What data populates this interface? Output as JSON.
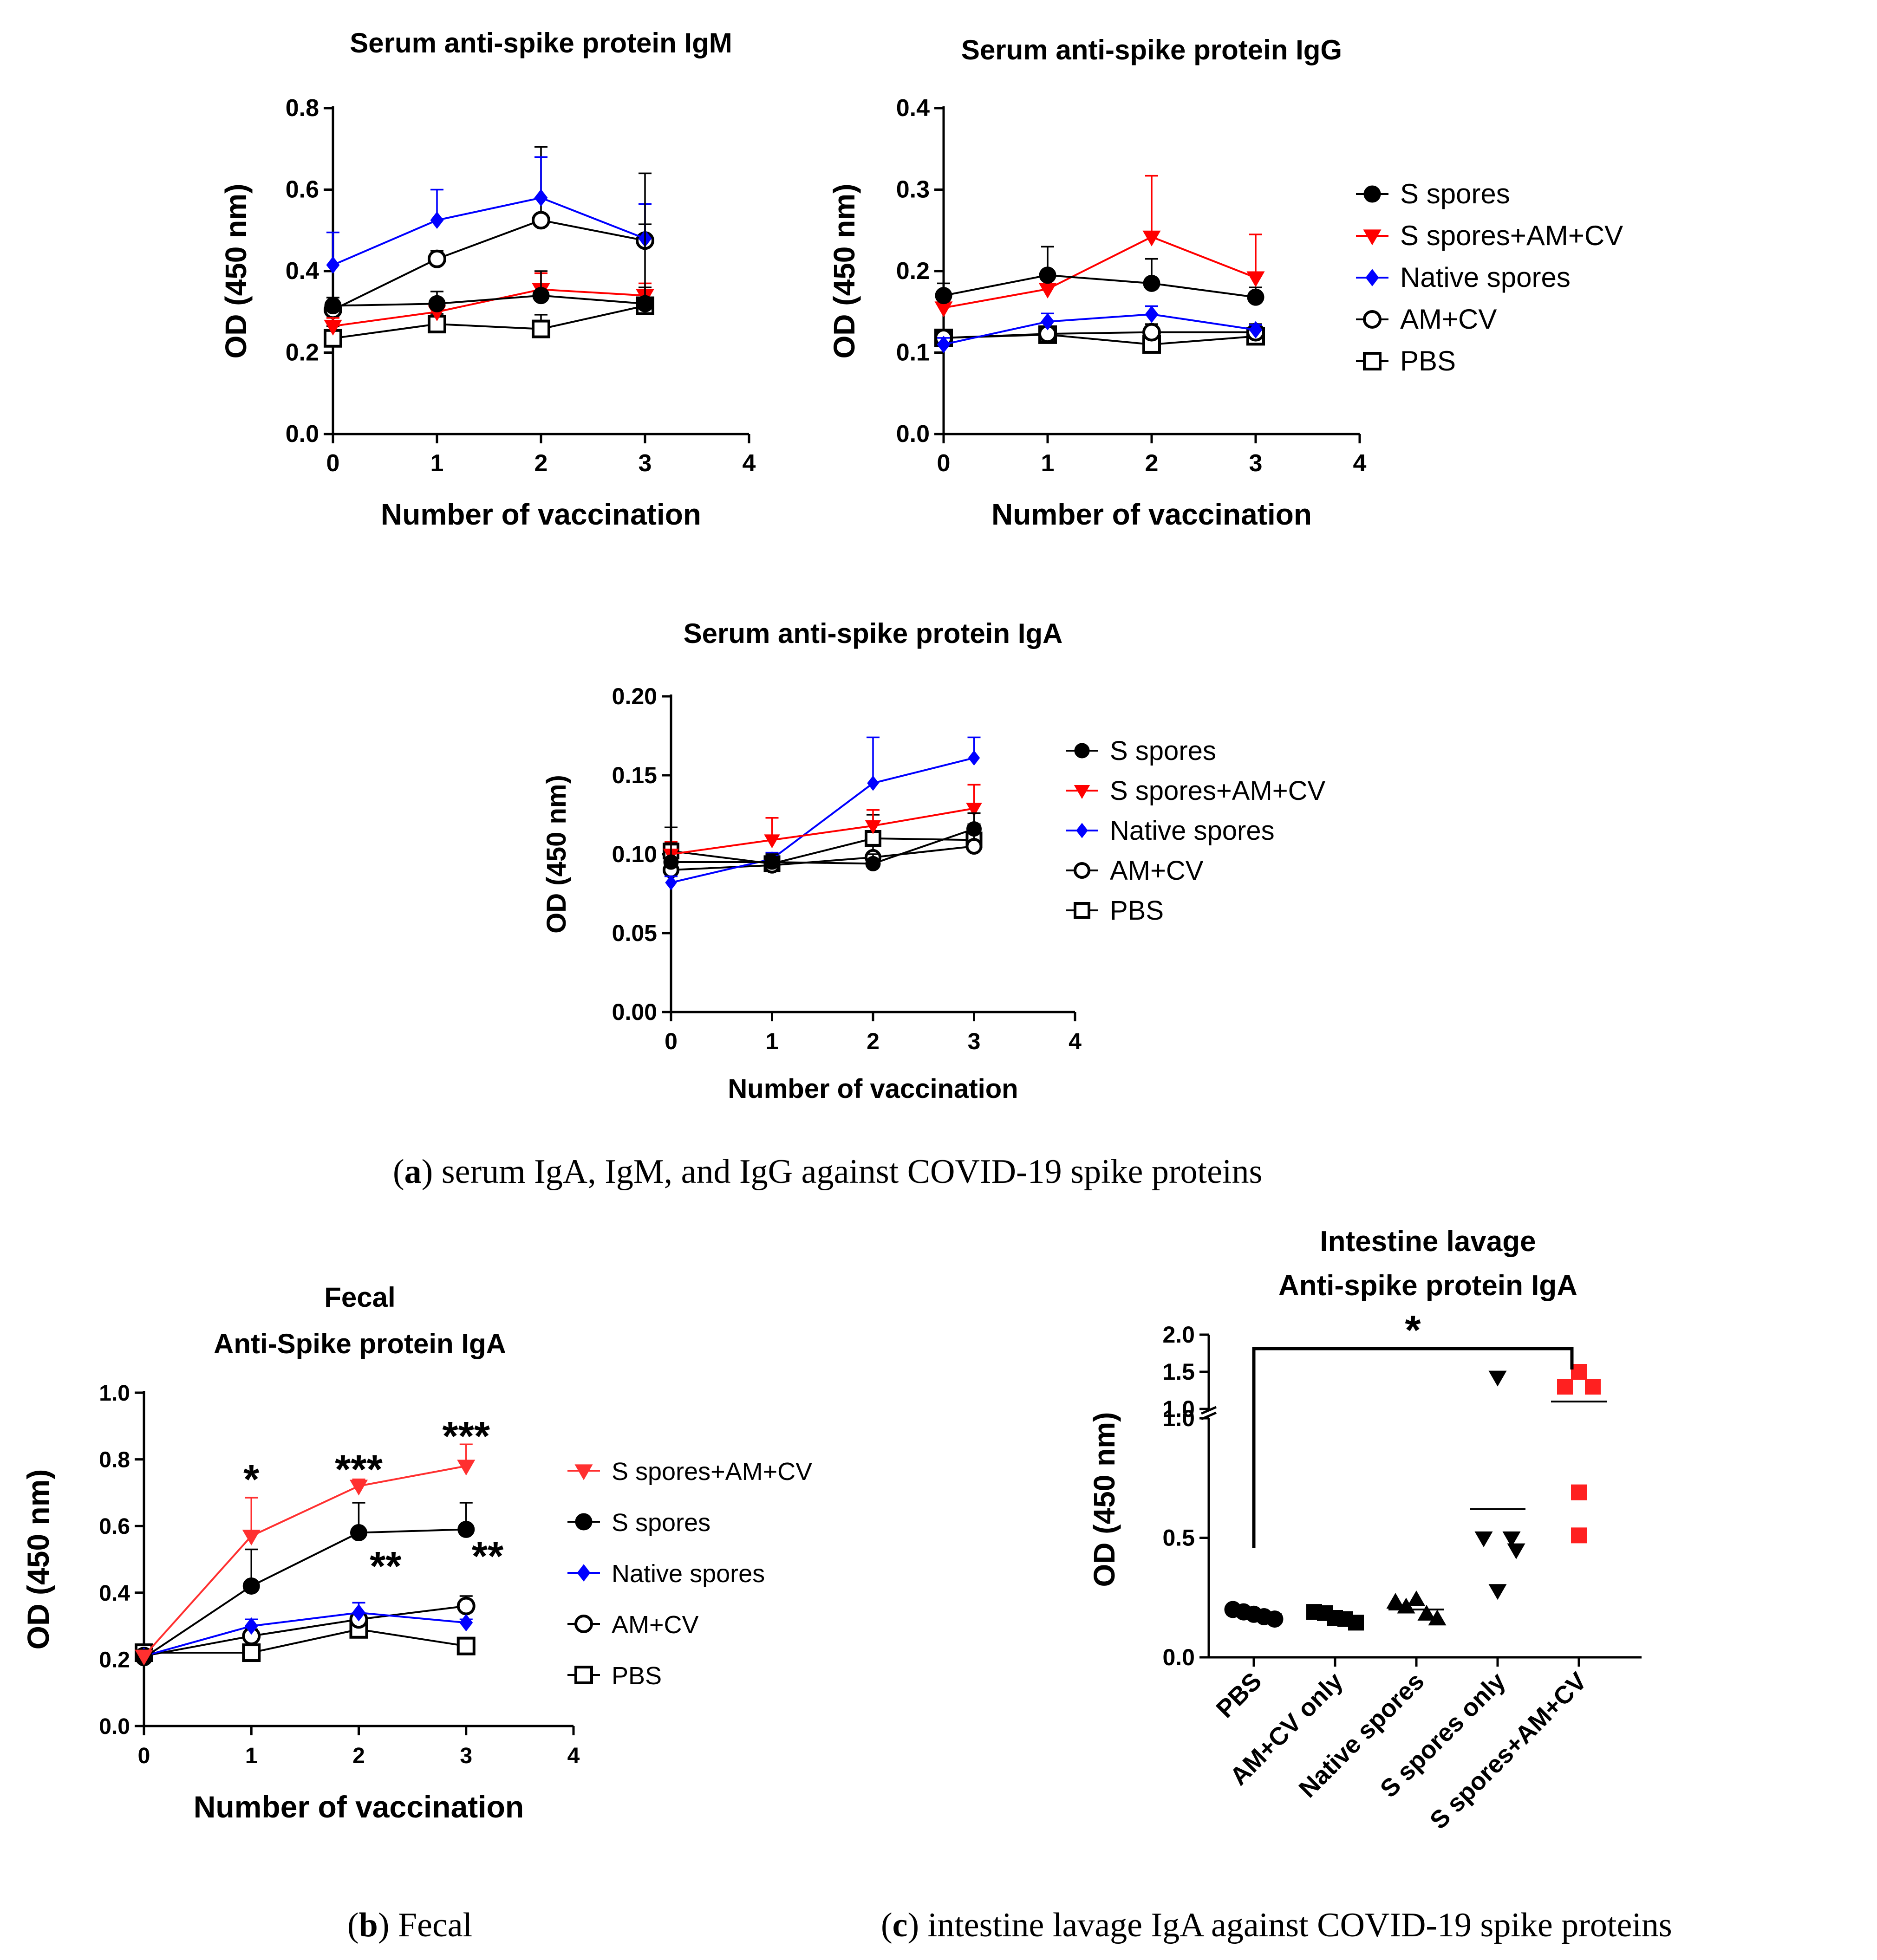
{
  "captions": {
    "a": {
      "letter": "a",
      "text": ") serum IgA, IgM, and IgG against COVID-19 spike proteins"
    },
    "b": {
      "letter": "b",
      "text": ") Fecal"
    },
    "c": {
      "letter": "c",
      "text": ") intestine lavage IgA against COVID-19 spike proteins"
    }
  },
  "colors": {
    "black": "#000000",
    "red": "#ff0000",
    "blue": "#0000ff",
    "red_light": "#ff3030"
  },
  "chart_data": [
    {
      "id": "igm",
      "type": "line",
      "title": [
        "Serum anti-spike protein IgM"
      ],
      "xlabel": "Number of vaccination",
      "ylabel": "OD (450 nm)",
      "xlim": [
        0,
        4
      ],
      "ylim": [
        0,
        0.8
      ],
      "xticks": [
        "0",
        "1",
        "2",
        "3",
        "4"
      ],
      "yticks": [
        "0.0",
        "0.2",
        "0.4",
        "0.6",
        "0.8"
      ],
      "x": [
        0,
        1,
        2,
        3
      ],
      "series": [
        {
          "name": "S spores",
          "marker": "circle-filled",
          "color": "#000000",
          "values": [
            0.315,
            0.32,
            0.34,
            0.32
          ],
          "err": [
            0.02,
            0.03,
            0.06,
            0.32
          ]
        },
        {
          "name": "S spores+AM+CV",
          "marker": "triangle-down",
          "color": "#ff0000",
          "values": [
            0.265,
            0.3,
            0.355,
            0.34
          ],
          "err": [
            0.02,
            0.03,
            0.04,
            0.03
          ]
        },
        {
          "name": "Native spores",
          "marker": "diamond",
          "color": "#0000ff",
          "values": [
            0.415,
            0.525,
            0.58,
            0.48
          ],
          "err": [
            0.08,
            0.075,
            0.1,
            0.085
          ]
        },
        {
          "name": "AM+CV",
          "marker": "circle-open",
          "color": "#000000",
          "values": [
            0.305,
            0.43,
            0.525,
            0.475
          ],
          "err": [
            0.03,
            0.02,
            0.18,
            0.04
          ]
        },
        {
          "name": "PBS",
          "marker": "square-open",
          "color": "#000000",
          "values": [
            0.235,
            0.27,
            0.258,
            0.315
          ],
          "err": [
            0.03,
            0.025,
            0.035,
            0.045
          ]
        }
      ],
      "legend": "none"
    },
    {
      "id": "igg",
      "type": "line",
      "title": [
        "Serum anti-spike protein IgG"
      ],
      "xlabel": "Number of vaccination",
      "ylabel": "OD (450 nm)",
      "xlim": [
        0,
        4
      ],
      "ylim": [
        0,
        0.4
      ],
      "xticks": [
        "0",
        "1",
        "2",
        "3",
        "4"
      ],
      "yticks": [
        "0.0",
        "0.1",
        "0.2",
        "0.3",
        "0.4"
      ],
      "x": [
        0,
        1,
        2,
        3
      ],
      "series": [
        {
          "name": "S spores",
          "marker": "circle-filled",
          "color": "#000000",
          "values": [
            0.17,
            0.195,
            0.185,
            0.168
          ],
          "err": [
            0.015,
            0.035,
            0.03,
            0.012
          ]
        },
        {
          "name": "S spores+AM+CV",
          "marker": "triangle-down",
          "color": "#ff0000",
          "values": [
            0.155,
            0.178,
            0.242,
            0.192
          ],
          "err": [
            0.01,
            0.02,
            0.075,
            0.053
          ]
        },
        {
          "name": "Native spores",
          "marker": "diamond",
          "color": "#0000ff",
          "values": [
            0.11,
            0.138,
            0.147,
            0.128
          ],
          "err": [
            0.008,
            0.01,
            0.01,
            0.006
          ]
        },
        {
          "name": "AM+CV",
          "marker": "circle-open",
          "color": "#000000",
          "values": [
            0.118,
            0.123,
            0.125,
            0.125
          ],
          "err": [
            0.01,
            0.008,
            0.01,
            0.01
          ]
        },
        {
          "name": "PBS",
          "marker": "square-open",
          "color": "#000000",
          "values": [
            0.118,
            0.122,
            0.11,
            0.12
          ],
          "err": [
            0.01,
            0.008,
            0.01,
            0.012
          ]
        }
      ],
      "legend": "right",
      "legend_order": [
        "S spores",
        "S spores+AM+CV",
        "Native spores",
        "AM+CV",
        "PBS"
      ]
    },
    {
      "id": "iga",
      "type": "line",
      "title": [
        "Serum anti-spike protein IgA"
      ],
      "xlabel": "Number of vaccination",
      "ylabel": "OD (450 nm)",
      "xlim": [
        0,
        4
      ],
      "ylim": [
        0,
        0.2
      ],
      "xticks": [
        "0",
        "1",
        "2",
        "3",
        "4"
      ],
      "yticks": [
        "0.00",
        "0.05",
        "0.10",
        "0.15",
        "0.20"
      ],
      "x": [
        0,
        1,
        2,
        3
      ],
      "series": [
        {
          "name": "S spores",
          "marker": "circle-filled",
          "color": "#000000",
          "values": [
            0.095,
            0.095,
            0.094,
            0.116
          ],
          "err": [
            0.022,
            0.005,
            0.006,
            0.01
          ]
        },
        {
          "name": "S spores+AM+CV",
          "marker": "triangle-down",
          "color": "#ff0000",
          "values": [
            0.1,
            0.109,
            0.118,
            0.129
          ],
          "err": [
            0.008,
            0.014,
            0.01,
            0.015
          ]
        },
        {
          "name": "Native spores",
          "marker": "diamond",
          "color": "#0000ff",
          "values": [
            0.082,
            0.097,
            0.145,
            0.161
          ],
          "err": [
            0.004,
            0.004,
            0.029,
            0.013
          ]
        },
        {
          "name": "AM+CV",
          "marker": "circle-open",
          "color": "#000000",
          "values": [
            0.09,
            0.093,
            0.098,
            0.105
          ],
          "err": [
            0.006,
            0.006,
            0.008,
            0.014
          ]
        },
        {
          "name": "PBS",
          "marker": "square-open",
          "color": "#000000",
          "values": [
            0.102,
            0.094,
            0.11,
            0.109
          ],
          "err": [
            0.005,
            0.006,
            0.015,
            0.007
          ]
        }
      ],
      "legend": "right",
      "legend_order": [
        "S spores",
        "S spores+AM+CV",
        "Native spores",
        "AM+CV",
        "PBS"
      ]
    },
    {
      "id": "fecal",
      "type": "line",
      "title": [
        "Fecal",
        "Anti-Spike protein IgA"
      ],
      "xlabel": "Number of vaccination",
      "ylabel": "OD (450 nm)",
      "xlim": [
        0,
        4
      ],
      "ylim": [
        0,
        1.0
      ],
      "xticks": [
        "0",
        "1",
        "2",
        "3",
        "4"
      ],
      "yticks": [
        "0.0",
        "0.2",
        "0.4",
        "0.6",
        "0.8",
        "1.0"
      ],
      "x": [
        0,
        1,
        2,
        3
      ],
      "series": [
        {
          "name": "S spores+AM+CV",
          "marker": "triangle-down",
          "color": "#ff3030",
          "values": [
            0.21,
            0.57,
            0.72,
            0.78
          ],
          "err": [
            0.01,
            0.115,
            0.02,
            0.065
          ]
        },
        {
          "name": "S spores",
          "marker": "circle-filled",
          "color": "#000000",
          "values": [
            0.205,
            0.42,
            0.58,
            0.59
          ],
          "err": [
            0.01,
            0.11,
            0.09,
            0.08
          ]
        },
        {
          "name": "Native spores",
          "marker": "diamond",
          "color": "#0000ff",
          "values": [
            0.21,
            0.3,
            0.34,
            0.31
          ],
          "err": [
            0.01,
            0.02,
            0.03,
            0.01
          ]
        },
        {
          "name": "AM+CV",
          "marker": "circle-open",
          "color": "#000000",
          "values": [
            0.21,
            0.27,
            0.32,
            0.36
          ],
          "err": [
            0.01,
            0.02,
            0.02,
            0.03
          ]
        },
        {
          "name": "PBS",
          "marker": "square-open",
          "color": "#000000",
          "values": [
            0.22,
            0.22,
            0.29,
            0.24
          ],
          "err": [
            0.01,
            0.01,
            0.02,
            0.01
          ]
        }
      ],
      "annotations": [
        {
          "text": "*",
          "x": 1,
          "y": 0.74
        },
        {
          "text": "***",
          "x": 2,
          "y": 0.77
        },
        {
          "text": "***",
          "x": 3,
          "y": 0.87
        },
        {
          "text": "**",
          "x": 2.25,
          "y": 0.48
        },
        {
          "text": "**",
          "x": 3.2,
          "y": 0.51
        }
      ],
      "legend": "right",
      "legend_order": [
        "S spores+AM+CV",
        "S spores",
        "Native spores",
        "AM+CV",
        "PBS"
      ]
    },
    {
      "id": "lavage",
      "type": "scatter",
      "title": [
        "Intestine lavage",
        "Anti-spike protein IgA"
      ],
      "xlabel": "",
      "ylabel": "OD (450 nm)",
      "ylim_lower": [
        0,
        1.0
      ],
      "ylim_upper": [
        1.0,
        2.0
      ],
      "yticks_lower": [
        "0.0",
        "0.5",
        "1.0"
      ],
      "yticks_upper": [
        "1.0",
        "1.5",
        "2.0"
      ],
      "categories": [
        "PBS",
        "AM+CV only",
        "Native spores",
        "S spores only",
        "S spores+AM+CV"
      ],
      "groups": [
        {
          "marker": "circle-filled",
          "color": "#000000",
          "values": [
            0.2,
            0.19,
            0.18,
            0.17,
            0.16
          ],
          "mean": 0.18
        },
        {
          "marker": "square-filled",
          "color": "#000000",
          "values": [
            0.19,
            0.185,
            0.165,
            0.16,
            0.145
          ],
          "mean": 0.17
        },
        {
          "marker": "triangle-up",
          "color": "#000000",
          "values": [
            0.23,
            0.21,
            0.24,
            0.18,
            0.16
          ],
          "mean": 0.2
        },
        {
          "marker": "triangle-down",
          "color": "#000000",
          "values": [
            1.43,
            0.5,
            0.5,
            0.45,
            0.28
          ],
          "mean": 0.62
        },
        {
          "marker": "square-filled",
          "color": "#ff2020",
          "values": [
            1.5,
            1.3,
            1.3,
            0.69,
            0.51
          ],
          "mean": 1.1
        }
      ],
      "significance": {
        "text": "*",
        "from": "PBS",
        "to": "S spores+AM+CV"
      }
    }
  ]
}
